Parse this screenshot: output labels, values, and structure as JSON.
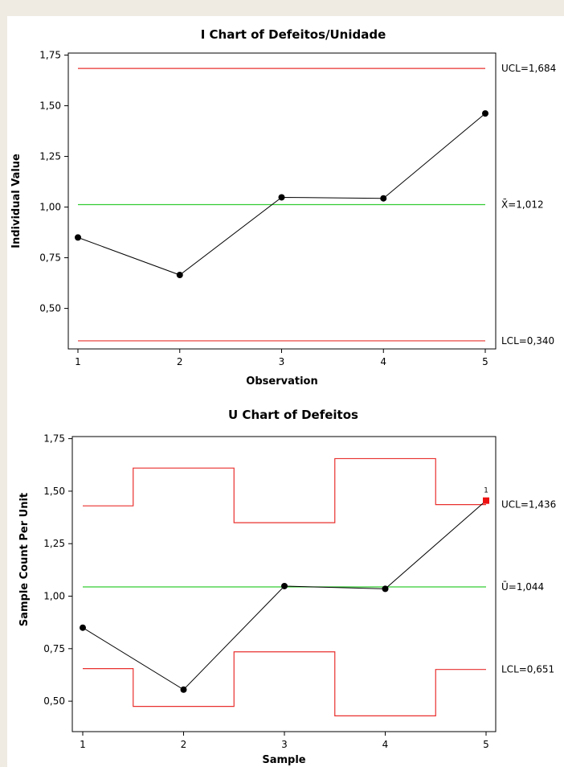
{
  "chart_data": [
    {
      "type": "line",
      "title": "I Chart of Defeitos/Unidade",
      "xlabel": "Observation",
      "ylabel": "Individual Value",
      "x": [
        1,
        2,
        3,
        4,
        5
      ],
      "x_tick_labels": [
        "1",
        "2",
        "3",
        "4",
        "5"
      ],
      "values": [
        0.85,
        0.665,
        1.048,
        1.043,
        1.462
      ],
      "ylim": [
        0.3,
        1.76
      ],
      "y_ticks": [
        0.5,
        0.75,
        1.0,
        1.25,
        1.5,
        1.75
      ],
      "y_tick_labels": [
        "0,50",
        "0,75",
        "1,00",
        "1,25",
        "1,50",
        "1,75"
      ],
      "ucl": 1.684,
      "center": 1.012,
      "lcl": 0.34,
      "ucl_label": "UCL=1,684",
      "center_label": "X̄=1,012",
      "lcl_label": "LCL=0,340",
      "colors": {
        "limits": "#e8302e",
        "center": "#33cc33",
        "data": "#000000"
      }
    },
    {
      "type": "line",
      "title": "U Chart of Defeitos",
      "xlabel": "Sample",
      "ylabel": "Sample Count Per Unit",
      "x": [
        1,
        2,
        3,
        4,
        5
      ],
      "x_tick_labels": [
        "1",
        "2",
        "3",
        "4",
        "5"
      ],
      "values": [
        0.85,
        0.555,
        1.048,
        1.035,
        1.455
      ],
      "ylim": [
        0.355,
        1.76
      ],
      "y_ticks": [
        0.5,
        0.75,
        1.0,
        1.25,
        1.5,
        1.75
      ],
      "y_tick_labels": [
        "0,50",
        "0,75",
        "1,00",
        "1,25",
        "1,50",
        "1,75"
      ],
      "ucl_steps": [
        1.43,
        1.61,
        1.35,
        1.655,
        1.436
      ],
      "center": 1.044,
      "lcl_steps": [
        0.655,
        0.475,
        0.735,
        0.43,
        0.651
      ],
      "ucl_label": "UCL=1,436",
      "center_label": "Ū=1,044",
      "lcl_label": "LCL=0,651",
      "out_of_control": [
        {
          "x": 5,
          "flag": "1"
        }
      ],
      "colors": {
        "limits": "#e8302e",
        "center": "#33cc33",
        "data": "#000000",
        "flagged": "#ee1111"
      }
    }
  ]
}
